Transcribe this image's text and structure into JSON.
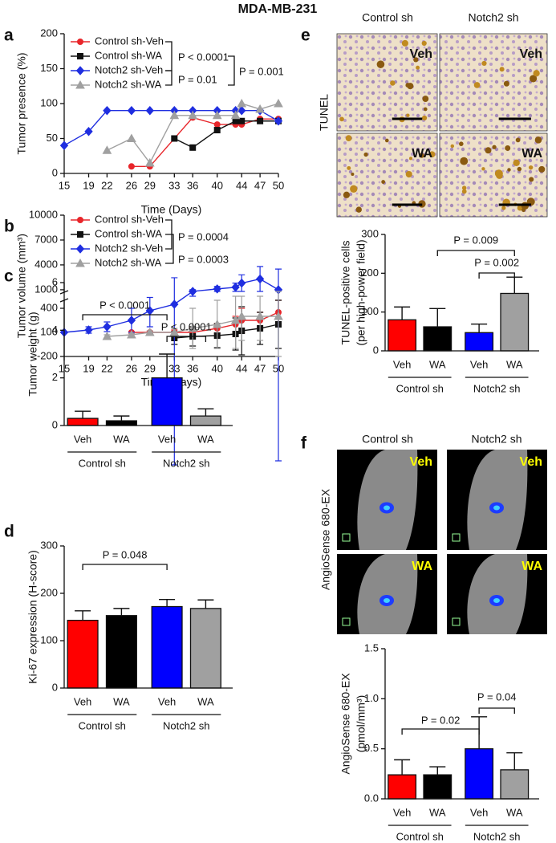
{
  "title": "MDA-MB-231",
  "chart_data": [
    {
      "panel": "a",
      "type": "line",
      "xlabel": "Time (Days)",
      "ylabel": "Tumor presence (%)",
      "xlim": [
        15,
        50
      ],
      "xticks": [
        15,
        19,
        22,
        26,
        29,
        33,
        36,
        40,
        44,
        47,
        50
      ],
      "ylim": [
        0,
        200
      ],
      "yticks": [
        0,
        50,
        100,
        150,
        200
      ],
      "series": [
        {
          "name": "Control sh-Veh",
          "color": "#e8262b",
          "marker": "o",
          "x": [
            26,
            29,
            36,
            40,
            43,
            44,
            47,
            50
          ],
          "values": [
            10,
            10,
            80,
            70,
            70,
            70,
            78,
            78
          ]
        },
        {
          "name": "Control sh-WA",
          "color": "#111111",
          "marker": "s",
          "x": [
            33,
            36,
            40,
            43,
            44,
            47,
            50
          ],
          "values": [
            50,
            37,
            62,
            75,
            75,
            75,
            75
          ]
        },
        {
          "name": "Notch2 sh-Veh",
          "color": "#1f2ee0",
          "marker": "D",
          "x": [
            15,
            19,
            22,
            26,
            29,
            33,
            36,
            40,
            43,
            44,
            47,
            50
          ],
          "values": [
            40,
            60,
            90,
            90,
            90,
            90,
            90,
            90,
            90,
            90,
            90,
            75
          ]
        },
        {
          "name": "Notch2 sh-WA",
          "color": "#a0a0a0",
          "marker": "^",
          "x": [
            22,
            26,
            29,
            33,
            36,
            40,
            43,
            44,
            47,
            50
          ],
          "values": [
            33,
            50,
            15,
            83,
            83,
            83,
            83,
            100,
            92,
            100
          ]
        }
      ],
      "annotations": [
        "P < 0.0001",
        "P = 0.01",
        "P = 0.001"
      ]
    },
    {
      "panel": "b",
      "type": "line",
      "xlabel": "Time (Days)",
      "ylabel": "Tumor volume (mm³)",
      "xlim": [
        15,
        50
      ],
      "xticks": [
        15,
        19,
        22,
        26,
        29,
        33,
        36,
        40,
        44,
        47,
        50
      ],
      "ylim": [
        -200,
        10000
      ],
      "ybreak": [
        500,
        700
      ],
      "yticks": [
        -200,
        100,
        400,
        1000,
        4000,
        7000,
        10000
      ],
      "series": [
        {
          "name": "Control sh-Veh",
          "color": "#e8262b",
          "marker": "o",
          "x": [
            26,
            29,
            33,
            36,
            40,
            43,
            44,
            47,
            50
          ],
          "values": [
            100,
            100,
            100,
            100,
            150,
            200,
            250,
            250,
            350
          ],
          "errors": [
            10,
            10,
            30,
            50,
            60,
            100,
            150,
            100,
            150
          ]
        },
        {
          "name": "Control sh-WA",
          "color": "#111111",
          "marker": "s",
          "x": [
            33,
            36,
            40,
            43,
            44,
            47,
            50
          ],
          "values": [
            30,
            50,
            60,
            80,
            120,
            150,
            200
          ],
          "errors": [
            80,
            120,
            150,
            200,
            300,
            200,
            300
          ]
        },
        {
          "name": "Notch2 sh-Veh",
          "color": "#1f2ee0",
          "marker": "D",
          "x": [
            15,
            19,
            22,
            26,
            29,
            33,
            36,
            40,
            43,
            44,
            47,
            50
          ],
          "values": [
            100,
            130,
            170,
            250,
            370,
            450,
            800,
            1100,
            1300,
            1800,
            2300,
            1000
          ],
          "errors": [
            10,
            40,
            60,
            150,
            200,
            2000,
            200,
            300,
            500,
            1000,
            1500,
            2500
          ]
        },
        {
          "name": "Notch2 sh-WA",
          "color": "#a0a0a0",
          "marker": "^",
          "x": [
            22,
            26,
            29,
            33,
            36,
            40,
            43,
            44,
            47,
            50
          ],
          "values": [
            50,
            70,
            100,
            100,
            150,
            200,
            250,
            300,
            300,
            300
          ],
          "errors": [
            20,
            20,
            20,
            50,
            250,
            300,
            350,
            300,
            300,
            500
          ]
        }
      ],
      "annotations": [
        "P = 0.0004",
        "P = 0.0003"
      ]
    },
    {
      "panel": "c",
      "type": "bar",
      "ylabel": [
        "Tumor weight (g)"
      ],
      "categories": [
        "Veh",
        "WA",
        "Veh",
        "WA"
      ],
      "groups": [
        "Control sh",
        "Notch2 sh"
      ],
      "values": [
        0.3,
        0.2,
        2.0,
        0.4
      ],
      "errors": [
        0.3,
        0.2,
        1.0,
        0.3
      ],
      "colors": [
        "#ff0000",
        "#000000",
        "#0000ff",
        "#a0a0a0"
      ],
      "ylim": [
        0,
        6
      ],
      "yticks": [
        0,
        2,
        4,
        6
      ],
      "annotations": [
        "P < 0.0001",
        "P < 0.0001"
      ]
    },
    {
      "panel": "d",
      "type": "bar",
      "ylabel": [
        "Ki-67 expression (H-score)"
      ],
      "categories": [
        "Veh",
        "WA",
        "Veh",
        "WA"
      ],
      "groups": [
        "Control sh",
        "Notch2 sh"
      ],
      "values": [
        143,
        153,
        172,
        168
      ],
      "errors": [
        20,
        15,
        15,
        18
      ],
      "colors": [
        "#ff0000",
        "#000000",
        "#0000ff",
        "#a0a0a0"
      ],
      "ylim": [
        0,
        300
      ],
      "yticks": [
        0,
        100,
        200,
        300
      ],
      "annotations": [
        "P = 0.048"
      ]
    },
    {
      "panel": "e",
      "type": "bar",
      "ylabel": [
        "TUNEL-positive cells",
        "(per high-power field)"
      ],
      "categories": [
        "Veh",
        "WA",
        "Veh",
        "WA"
      ],
      "groups": [
        "Control sh",
        "Notch2 sh"
      ],
      "values": [
        80,
        62,
        47,
        148
      ],
      "errors": [
        33,
        47,
        22,
        42
      ],
      "colors": [
        "#ff0000",
        "#000000",
        "#0000ff",
        "#a0a0a0"
      ],
      "ylim": [
        0,
        300
      ],
      "yticks": [
        0,
        100,
        200,
        300
      ],
      "annotations": [
        "P = 0.009",
        "P = 0.002"
      ],
      "images": {
        "columns": [
          "Control sh",
          "Notch2 sh"
        ],
        "row_label": "TUNEL",
        "tags": [
          "Veh",
          "Veh",
          "WA",
          "WA"
        ]
      }
    },
    {
      "panel": "f",
      "type": "bar",
      "ylabel": [
        "AngioSense 680-EX",
        "(pmol/mm³)"
      ],
      "categories": [
        "Veh",
        "WA",
        "Veh",
        "WA"
      ],
      "groups": [
        "Control sh",
        "Notch2 sh"
      ],
      "values": [
        0.24,
        0.24,
        0.5,
        0.29
      ],
      "errors": [
        0.15,
        0.08,
        0.32,
        0.17
      ],
      "colors": [
        "#ff0000",
        "#000000",
        "#0000ff",
        "#a0a0a0"
      ],
      "ylim": [
        0,
        1.5
      ],
      "yticks": [
        {
          "value": 0,
          "label": "0.0"
        },
        0.5,
        {
          "value": 1,
          "label": "1.0"
        },
        1.5
      ],
      "annotations": [
        "P = 0.04",
        "P = 0.02"
      ],
      "images": {
        "columns": [
          "Control sh",
          "Notch2 sh"
        ],
        "row_label": "AngioSense 680-EX",
        "tags": [
          "Veh",
          "Veh",
          "WA",
          "WA"
        ]
      }
    }
  ]
}
